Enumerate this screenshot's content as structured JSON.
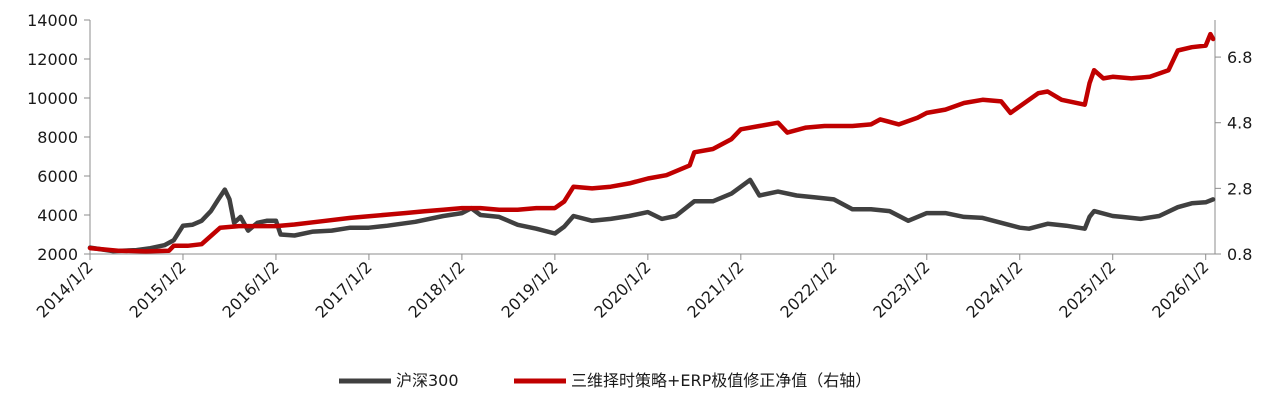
{
  "chart_data": {
    "type": "line",
    "x_ticks": [
      "2014/1/2",
      "2015/1/2",
      "2016/1/2",
      "2017/1/2",
      "2018/1/2",
      "2019/1/2",
      "2020/1/2",
      "2021/1/2",
      "2022/1/2",
      "2023/1/2",
      "2024/1/2",
      "2025/1/2",
      "2026/1/2"
    ],
    "y_left_ticks": [
      "2000",
      "4000",
      "6000",
      "8000",
      "10000",
      "12000",
      "14000"
    ],
    "y_left_range": [
      2000,
      14000
    ],
    "y_right_ticks": [
      "0.8",
      "2.8",
      "4.8",
      "6.8"
    ],
    "y_right_range": [
      0.8,
      7.93
    ],
    "x_range": [
      2014.0,
      2026.1
    ],
    "grid": false,
    "legend_position": "bottom",
    "series": [
      {
        "name": "沪深300",
        "axis": "left",
        "color": "#404040",
        "points": [
          [
            2014.0,
            2330
          ],
          [
            2014.25,
            2150
          ],
          [
            2014.5,
            2200
          ],
          [
            2014.65,
            2300
          ],
          [
            2014.8,
            2450
          ],
          [
            2014.9,
            2700
          ],
          [
            2015.0,
            3450
          ],
          [
            2015.1,
            3500
          ],
          [
            2015.2,
            3700
          ],
          [
            2015.3,
            4200
          ],
          [
            2015.38,
            4800
          ],
          [
            2015.45,
            5300
          ],
          [
            2015.5,
            4800
          ],
          [
            2015.55,
            3600
          ],
          [
            2015.62,
            3900
          ],
          [
            2015.7,
            3200
          ],
          [
            2015.8,
            3600
          ],
          [
            2015.9,
            3700
          ],
          [
            2016.0,
            3700
          ],
          [
            2016.05,
            3000
          ],
          [
            2016.2,
            2950
          ],
          [
            2016.4,
            3150
          ],
          [
            2016.6,
            3200
          ],
          [
            2016.8,
            3350
          ],
          [
            2017.0,
            3350
          ],
          [
            2017.2,
            3450
          ],
          [
            2017.5,
            3650
          ],
          [
            2017.8,
            3950
          ],
          [
            2018.0,
            4100
          ],
          [
            2018.1,
            4350
          ],
          [
            2018.2,
            4000
          ],
          [
            2018.4,
            3900
          ],
          [
            2018.6,
            3500
          ],
          [
            2018.8,
            3300
          ],
          [
            2019.0,
            3050
          ],
          [
            2019.1,
            3400
          ],
          [
            2019.2,
            3950
          ],
          [
            2019.4,
            3700
          ],
          [
            2019.6,
            3800
          ],
          [
            2019.8,
            3950
          ],
          [
            2020.0,
            4150
          ],
          [
            2020.15,
            3800
          ],
          [
            2020.3,
            3950
          ],
          [
            2020.5,
            4700
          ],
          [
            2020.7,
            4700
          ],
          [
            2020.9,
            5100
          ],
          [
            2021.1,
            5800
          ],
          [
            2021.2,
            5000
          ],
          [
            2021.4,
            5200
          ],
          [
            2021.6,
            5000
          ],
          [
            2021.8,
            4900
          ],
          [
            2022.0,
            4800
          ],
          [
            2022.2,
            4300
          ],
          [
            2022.4,
            4300
          ],
          [
            2022.6,
            4200
          ],
          [
            2022.8,
            3700
          ],
          [
            2023.0,
            4100
          ],
          [
            2023.2,
            4100
          ],
          [
            2023.4,
            3900
          ],
          [
            2023.6,
            3850
          ],
          [
            2023.8,
            3600
          ],
          [
            2024.0,
            3350
          ],
          [
            2024.1,
            3300
          ],
          [
            2024.3,
            3550
          ],
          [
            2024.5,
            3450
          ],
          [
            2024.7,
            3300
          ],
          [
            2024.75,
            3900
          ],
          [
            2024.8,
            4200
          ],
          [
            2025.0,
            3950
          ],
          [
            2025.1,
            3900
          ],
          [
            2025.3,
            3800
          ],
          [
            2025.5,
            3950
          ],
          [
            2025.7,
            4400
          ],
          [
            2025.85,
            4600
          ],
          [
            2026.0,
            4650
          ],
          [
            2026.08,
            4800
          ]
        ]
      },
      {
        "name": "三维择时策略+ERP极值修正净值（右轴）",
        "axis": "right",
        "color": "#c00000",
        "points": [
          [
            2014.0,
            0.98
          ],
          [
            2014.3,
            0.9
          ],
          [
            2014.6,
            0.88
          ],
          [
            2014.85,
            0.9
          ],
          [
            2014.9,
            1.05
          ],
          [
            2015.05,
            1.05
          ],
          [
            2015.2,
            1.1
          ],
          [
            2015.3,
            1.35
          ],
          [
            2015.4,
            1.6
          ],
          [
            2015.6,
            1.65
          ],
          [
            2015.8,
            1.65
          ],
          [
            2016.0,
            1.65
          ],
          [
            2016.2,
            1.7
          ],
          [
            2016.5,
            1.8
          ],
          [
            2016.8,
            1.9
          ],
          [
            2017.0,
            1.95
          ],
          [
            2017.2,
            2.0
          ],
          [
            2017.4,
            2.05
          ],
          [
            2017.6,
            2.1
          ],
          [
            2017.8,
            2.15
          ],
          [
            2018.0,
            2.2
          ],
          [
            2018.2,
            2.2
          ],
          [
            2018.4,
            2.15
          ],
          [
            2018.6,
            2.15
          ],
          [
            2018.8,
            2.2
          ],
          [
            2019.0,
            2.2
          ],
          [
            2019.1,
            2.4
          ],
          [
            2019.2,
            2.85
          ],
          [
            2019.4,
            2.8
          ],
          [
            2019.6,
            2.85
          ],
          [
            2019.8,
            2.95
          ],
          [
            2020.0,
            3.1
          ],
          [
            2020.2,
            3.2
          ],
          [
            2020.45,
            3.5
          ],
          [
            2020.5,
            3.9
          ],
          [
            2020.7,
            4.0
          ],
          [
            2020.9,
            4.3
          ],
          [
            2021.0,
            4.6
          ],
          [
            2021.2,
            4.7
          ],
          [
            2021.4,
            4.8
          ],
          [
            2021.5,
            4.5
          ],
          [
            2021.7,
            4.65
          ],
          [
            2021.9,
            4.7
          ],
          [
            2022.0,
            4.7
          ],
          [
            2022.2,
            4.7
          ],
          [
            2022.4,
            4.75
          ],
          [
            2022.5,
            4.9
          ],
          [
            2022.7,
            4.75
          ],
          [
            2022.9,
            4.95
          ],
          [
            2023.0,
            5.1
          ],
          [
            2023.2,
            5.2
          ],
          [
            2023.4,
            5.4
          ],
          [
            2023.6,
            5.5
          ],
          [
            2023.8,
            5.45
          ],
          [
            2023.9,
            5.1
          ],
          [
            2024.0,
            5.3
          ],
          [
            2024.2,
            5.7
          ],
          [
            2024.3,
            5.75
          ],
          [
            2024.45,
            5.5
          ],
          [
            2024.7,
            5.35
          ],
          [
            2024.75,
            6.0
          ],
          [
            2024.8,
            6.4
          ],
          [
            2024.9,
            6.15
          ],
          [
            2025.0,
            6.2
          ],
          [
            2025.2,
            6.15
          ],
          [
            2025.4,
            6.2
          ],
          [
            2025.6,
            6.4
          ],
          [
            2025.7,
            7.0
          ],
          [
            2025.85,
            7.1
          ],
          [
            2026.0,
            7.15
          ],
          [
            2026.05,
            7.5
          ],
          [
            2026.08,
            7.35
          ]
        ]
      }
    ]
  }
}
